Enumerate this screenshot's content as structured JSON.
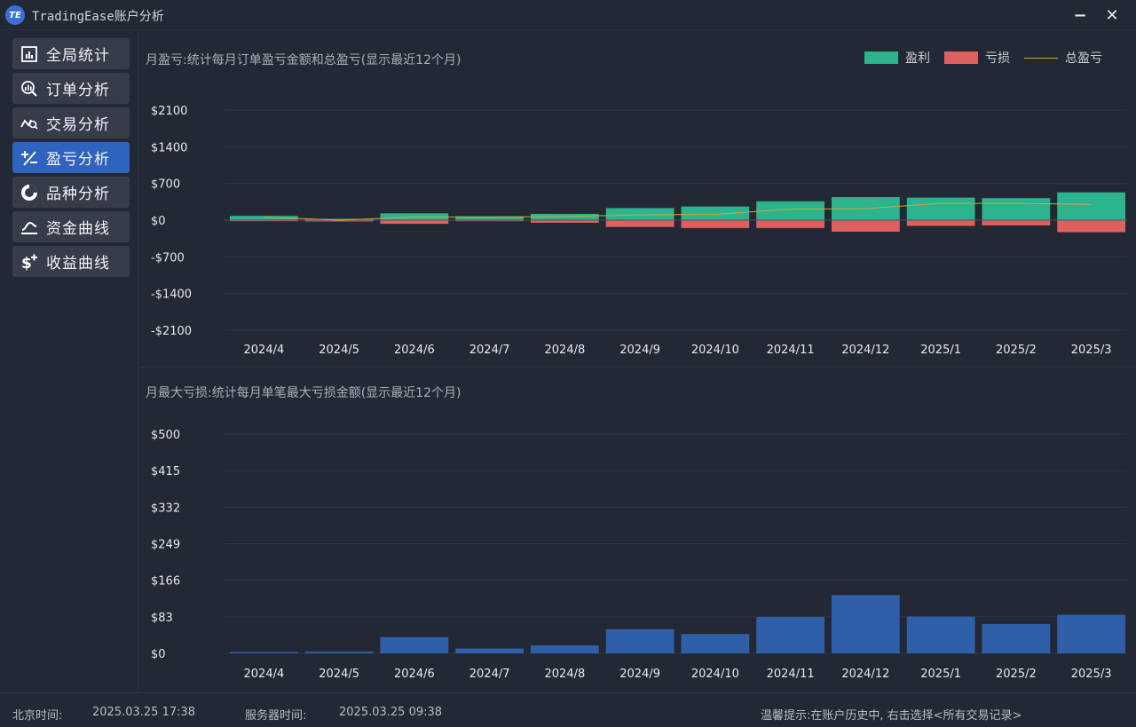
{
  "window": {
    "logo_text": "TE",
    "title": "TradingEase账户分析",
    "minimize": "−",
    "close": "✕"
  },
  "sidebar": {
    "items": [
      {
        "label": "全局统计",
        "icon": "bar-chart-icon",
        "active": false
      },
      {
        "label": "订单分析",
        "icon": "magnifier-chart-icon",
        "active": false
      },
      {
        "label": "交易分析",
        "icon": "trend-search-icon",
        "active": false
      },
      {
        "label": "盈亏分析",
        "icon": "plus-minus-icon",
        "active": true
      },
      {
        "label": "品种分析",
        "icon": "pie-chart-icon",
        "active": false
      },
      {
        "label": "资金曲线",
        "icon": "curve-icon",
        "active": false
      },
      {
        "label": "收益曲线",
        "icon": "dollar-plus-icon",
        "active": false
      }
    ]
  },
  "colors": {
    "profit": "#2bb48e",
    "loss": "#e0605f",
    "total_line": "#d4a63a",
    "max_loss_bar": "#2f5fa8",
    "active_nav": "#2f63c0"
  },
  "panels": {
    "monthly_pnl": {
      "title": "月盈亏:统计每月订单盈亏金额和总盈亏(显示最近12个月)",
      "legend": {
        "profit": "盈利",
        "loss": "亏损",
        "total": "总盈亏"
      }
    },
    "max_loss": {
      "title": "月最大亏损:统计每月单笔最大亏损金额(显示最近12个月)"
    }
  },
  "chart_data": [
    {
      "type": "bar",
      "title": "月盈亏:统计每月订单盈亏金额和总盈亏(显示最近12个月)",
      "categories": [
        "2024/4",
        "2024/5",
        "2024/6",
        "2024/7",
        "2024/8",
        "2024/9",
        "2024/10",
        "2024/11",
        "2024/12",
        "2025/1",
        "2025/2",
        "2025/3"
      ],
      "series": [
        {
          "name": "盈利",
          "values": [
            80,
            25,
            130,
            75,
            120,
            230,
            260,
            360,
            440,
            430,
            420,
            530
          ]
        },
        {
          "name": "亏损",
          "values": [
            -20,
            -25,
            -70,
            -20,
            -50,
            -130,
            -150,
            -150,
            -220,
            -110,
            -100,
            -230
          ]
        },
        {
          "name": "总盈亏",
          "values": [
            60,
            0,
            60,
            55,
            70,
            100,
            110,
            210,
            220,
            320,
            320,
            300
          ]
        }
      ],
      "yticks": [
        "$2100",
        "$1400",
        "$700",
        "$0",
        "-$700",
        "-$1400",
        "-$2100"
      ],
      "ylim": [
        -2100,
        2100
      ],
      "legend": "top-right",
      "grid": true
    },
    {
      "type": "bar",
      "title": "月最大亏损:统计每月单笔最大亏损金额(显示最近12个月)",
      "categories": [
        "2024/4",
        "2024/5",
        "2024/6",
        "2024/7",
        "2024/8",
        "2024/9",
        "2024/10",
        "2024/11",
        "2024/12",
        "2025/1",
        "2025/2",
        "2025/3"
      ],
      "series": [
        {
          "values": [
            3,
            4,
            37,
            11,
            18,
            55,
            44,
            83,
            133,
            84,
            67,
            88
          ]
        }
      ],
      "yticks": [
        "$500",
        "$415",
        "$332",
        "$249",
        "$166",
        "$83",
        "$0"
      ],
      "ylim": [
        0,
        500
      ],
      "grid": true
    }
  ],
  "statusbar": {
    "beijing_label": "北京时间:",
    "beijing_time": "2025.03.25 17:38",
    "server_label": "服务器时间:",
    "server_time": "2025.03.25 09:38",
    "tip": "温馨提示:在账户历史中, 右击选择<所有交易记录>"
  }
}
